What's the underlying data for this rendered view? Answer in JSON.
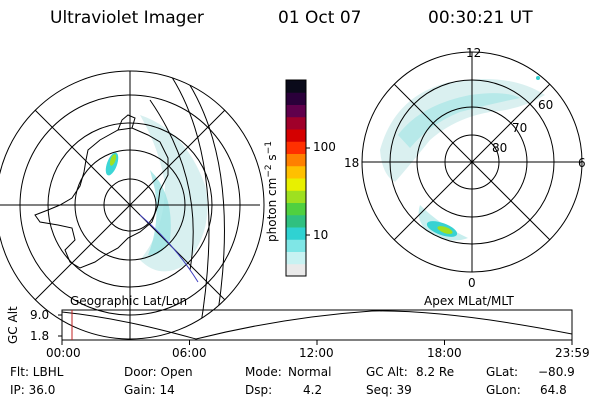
{
  "header": {
    "title": "Ultraviolet Imager",
    "date": "01 Oct 07",
    "time": "00:30:21 UT"
  },
  "left_panel": {
    "caption": "Geographic Lat/Lon"
  },
  "right_panel": {
    "caption": "Apex MLat/MLT",
    "mlt_labels": {
      "top": "12",
      "left": "18",
      "right": "6",
      "bottom": "0"
    },
    "mlat_labels": [
      "60",
      "70",
      "80"
    ]
  },
  "colorbar": {
    "label": "photon cm",
    "exp1": "−2",
    "mid": "s",
    "exp2": "−1",
    "ticks": [
      "100",
      "10"
    ],
    "colors": [
      "#eaeaea",
      "#c8f2f2",
      "#7fe6e6",
      "#2fd2d2",
      "#30c080",
      "#50d040",
      "#9ee020",
      "#e8f000",
      "#ffc000",
      "#ff8000",
      "#ff3000",
      "#d40000",
      "#a0002a",
      "#60004c",
      "#2a003a",
      "#0a0a1a"
    ]
  },
  "altitude_plot": {
    "ylabel": "GC Alt",
    "yticks": [
      "9.0",
      "1.8"
    ],
    "xticks": [
      "00:00",
      "06:00",
      "12:00",
      "18:00",
      "23:59"
    ]
  },
  "info": {
    "filter": "Flt: LBHL",
    "ip": "IP: 36.0",
    "door": "Door: Open",
    "gain": "Gain: 14",
    "mode_label": "Mode:",
    "mode_value": "Normal",
    "dsp_label": "Dsp:",
    "dsp_value": "4.2",
    "gcalt_label": "GC Alt:",
    "gcalt_value": "8.2 Re",
    "seq": "Seq: 39",
    "glat_label": "GLat:",
    "glat_value": "−80.9",
    "glon_label": "GLon:",
    "glon_value": "64.8"
  }
}
